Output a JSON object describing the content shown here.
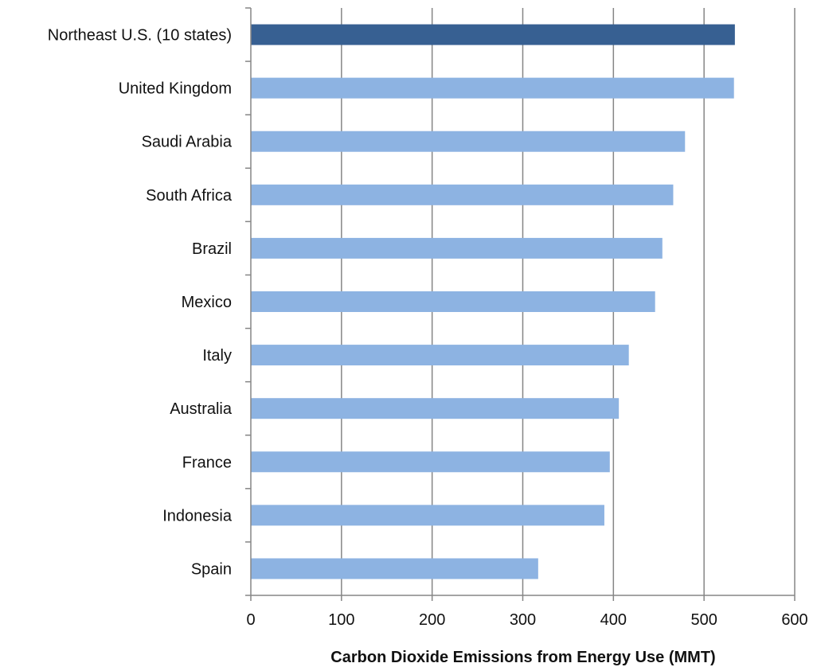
{
  "chart_data": {
    "type": "bar",
    "orientation": "horizontal",
    "title": "",
    "xlabel": "Carbon Dioxide Emissions from Energy Use (MMT)",
    "ylabel": "",
    "categories": [
      "Northeast U.S. (10 states)",
      "United Kingdom",
      "Saudi Arabia",
      "South Africa",
      "Brazil",
      "Mexico",
      "Italy",
      "Australia",
      "France",
      "Indonesia",
      "Spain"
    ],
    "values": [
      534,
      533,
      479,
      466,
      454,
      446,
      417,
      406,
      396,
      390,
      317
    ],
    "highlight_index": 0,
    "xlim": [
      0,
      600
    ],
    "xticks": [
      0,
      100,
      200,
      300,
      400,
      500,
      600
    ],
    "xtick_labels": [
      "0",
      "100",
      "200",
      "300",
      "400",
      "500",
      "600"
    ],
    "grid": "vertical",
    "legend": "none",
    "colors": {
      "bar": "#8DB3E2",
      "highlight": "#376092",
      "grid": "#868686",
      "axis": "#868686"
    }
  }
}
